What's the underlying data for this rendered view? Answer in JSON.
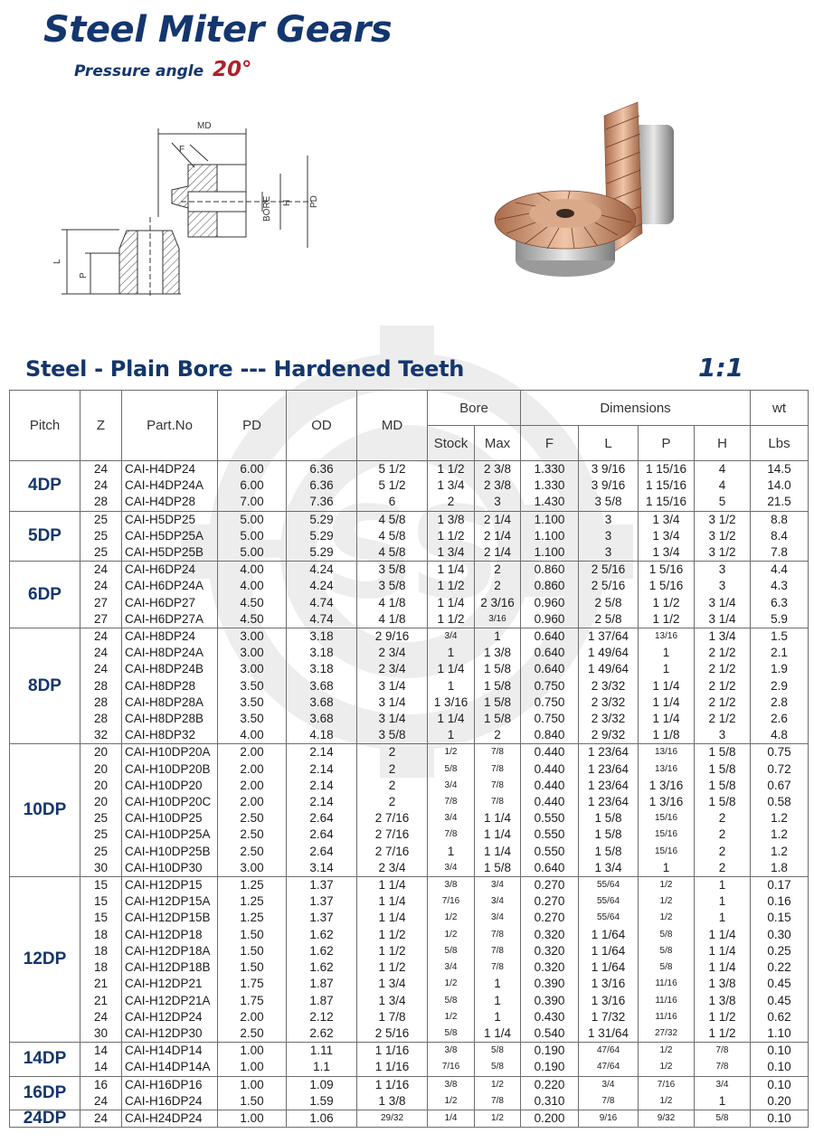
{
  "title": "Steel Miter Gears",
  "subtitle": {
    "label": "Pressure angle",
    "value": "20°"
  },
  "drawing": {
    "labels": {
      "md": "MD",
      "f": "F",
      "bore": "BORE",
      "h": "H",
      "pd": "PD",
      "l": "L",
      "p": "P"
    }
  },
  "section_title": "Steel - Plain Bore --- Hardened Teeth",
  "ratio": "1:1",
  "watermark": "HSSB",
  "table": {
    "headers": {
      "pitch": "Pitch",
      "z": "Z",
      "part": "Part.No",
      "pd": "PD",
      "od": "OD",
      "md": "MD",
      "bore": "Bore",
      "stock": "Stock",
      "max": "Max",
      "dimensions": "Dimensions",
      "f": "F",
      "l": "L",
      "p": "P",
      "h": "H",
      "wt": "wt",
      "lbs": "Lbs"
    },
    "groups": [
      {
        "pitch": "4DP",
        "rows": [
          [
            "24",
            "CAI-H4DP24",
            "6.00",
            "6.36",
            "5 1/2",
            "1 1/2",
            "2 3/8",
            "1.330",
            "3 9/16",
            "1 15/16",
            "4",
            "14.5"
          ],
          [
            "24",
            "CAI-H4DP24A",
            "6.00",
            "6.36",
            "5 1/2",
            "1 3/4",
            "2 3/8",
            "1.330",
            "3 9/16",
            "1 15/16",
            "4",
            "14.0"
          ],
          [
            "28",
            "CAI-H4DP28",
            "7.00",
            "7.36",
            "6",
            "2",
            "3",
            "1.430",
            "3 5/8",
            "1 15/16",
            "5",
            "21.5"
          ]
        ]
      },
      {
        "pitch": "5DP",
        "rows": [
          [
            "25",
            "CAI-H5DP25",
            "5.00",
            "5.29",
            "4 5/8",
            "1 3/8",
            "2 1/4",
            "1.100",
            "3",
            "1 3/4",
            "3 1/2",
            "8.8"
          ],
          [
            "25",
            "CAI-H5DP25A",
            "5.00",
            "5.29",
            "4 5/8",
            "1 1/2",
            "2 1/4",
            "1.100",
            "3",
            "1 3/4",
            "3 1/2",
            "8.4"
          ],
          [
            "25",
            "CAI-H5DP25B",
            "5.00",
            "5.29",
            "4 5/8",
            "1 3/4",
            "2 1/4",
            "1.100",
            "3",
            "1 3/4",
            "3 1/2",
            "7.8"
          ]
        ]
      },
      {
        "pitch": "6DP",
        "rows": [
          [
            "24",
            "CAI-H6DP24",
            "4.00",
            "4.24",
            "3 5/8",
            "1 1/4",
            "2",
            "0.860",
            "2 5/16",
            "1 5/16",
            "3",
            "4.4"
          ],
          [
            "24",
            "CAI-H6DP24A",
            "4.00",
            "4.24",
            "3 5/8",
            "1 1/2",
            "2",
            "0.860",
            "2 5/16",
            "1 5/16",
            "3",
            "4.3"
          ],
          [
            "27",
            "CAI-H6DP27",
            "4.50",
            "4.74",
            "4 1/8",
            "1 1/4",
            "2 3/16",
            "0.960",
            "2 5/8",
            "1 1/2",
            "3 1/4",
            "6.3"
          ],
          [
            "27",
            "CAI-H6DP27A",
            "4.50",
            "4.74",
            "4 1/8",
            "1 1/2",
            "3/16",
            "0.960",
            "2 5/8",
            "1 1/2",
            "3 1/4",
            "5.9"
          ]
        ]
      },
      {
        "pitch": "8DP",
        "rows": [
          [
            "24",
            "CAI-H8DP24",
            "3.00",
            "3.18",
            "2 9/16",
            "3/4",
            "1",
            "0.640",
            "1 37/64",
            "13/16",
            "1 3/4",
            "1.5"
          ],
          [
            "24",
            "CAI-H8DP24A",
            "3.00",
            "3.18",
            "2 3/4",
            "1",
            "1 3/8",
            "0.640",
            "1 49/64",
            "1",
            "2 1/2",
            "2.1"
          ],
          [
            "24",
            "CAI-H8DP24B",
            "3.00",
            "3.18",
            "2 3/4",
            "1 1/4",
            "1 5/8",
            "0.640",
            "1 49/64",
            "1",
            "2 1/2",
            "1.9"
          ],
          [
            "28",
            "CAI-H8DP28",
            "3.50",
            "3.68",
            "3 1/4",
            "1",
            "1 5/8",
            "0.750",
            "2 3/32",
            "1 1/4",
            "2 1/2",
            "2.9"
          ],
          [
            "28",
            "CAI-H8DP28A",
            "3.50",
            "3.68",
            "3 1/4",
            "1 3/16",
            "1 5/8",
            "0.750",
            "2 3/32",
            "1 1/4",
            "2 1/2",
            "2.8"
          ],
          [
            "28",
            "CAI-H8DP28B",
            "3.50",
            "3.68",
            "3 1/4",
            "1 1/4",
            "1 5/8",
            "0.750",
            "2 3/32",
            "1 1/4",
            "2 1/2",
            "2.6"
          ],
          [
            "32",
            "CAI-H8DP32",
            "4.00",
            "4.18",
            "3 5/8",
            "1",
            "2",
            "0.840",
            "2 9/32",
            "1 1/8",
            "3",
            "4.8"
          ]
        ]
      },
      {
        "pitch": "10DP",
        "rows": [
          [
            "20",
            "CAI-H10DP20A",
            "2.00",
            "2.14",
            "2",
            "1/2",
            "7/8",
            "0.440",
            "1 23/64",
            "13/16",
            "1 5/8",
            "0.75"
          ],
          [
            "20",
            "CAI-H10DP20B",
            "2.00",
            "2.14",
            "2",
            "5/8",
            "7/8",
            "0.440",
            "1 23/64",
            "13/16",
            "1 5/8",
            "0.72"
          ],
          [
            "20",
            "CAI-H10DP20",
            "2.00",
            "2.14",
            "2",
            "3/4",
            "7/8",
            "0.440",
            "1 23/64",
            "1 3/16",
            "1 5/8",
            "0.67"
          ],
          [
            "20",
            "CAI-H10DP20C",
            "2.00",
            "2.14",
            "2",
            "7/8",
            "7/8",
            "0.440",
            "1 23/64",
            "1 3/16",
            "1 5/8",
            "0.58"
          ],
          [
            "25",
            "CAI-H10DP25",
            "2.50",
            "2.64",
            "2 7/16",
            "3/4",
            "1 1/4",
            "0.550",
            "1 5/8",
            "15/16",
            "2",
            "1.2"
          ],
          [
            "25",
            "CAI-H10DP25A",
            "2.50",
            "2.64",
            "2 7/16",
            "7/8",
            "1 1/4",
            "0.550",
            "1 5/8",
            "15/16",
            "2",
            "1.2"
          ],
          [
            "25",
            "CAI-H10DP25B",
            "2.50",
            "2.64",
            "2 7/16",
            "1",
            "1 1/4",
            "0.550",
            "1 5/8",
            "15/16",
            "2",
            "1.2"
          ],
          [
            "30",
            "CAI-H10DP30",
            "3.00",
            "3.14",
            "2 3/4",
            "3/4",
            "1 5/8",
            "0.640",
            "1 3/4",
            "1",
            "2",
            "1.8"
          ]
        ]
      },
      {
        "pitch": "12DP",
        "rows": [
          [
            "15",
            "CAI-H12DP15",
            "1.25",
            "1.37",
            "1 1/4",
            "3/8",
            "3/4",
            "0.270",
            "55/64",
            "1/2",
            "1",
            "0.17"
          ],
          [
            "15",
            "CAI-H12DP15A",
            "1.25",
            "1.37",
            "1 1/4",
            "7/16",
            "3/4",
            "0.270",
            "55/64",
            "1/2",
            "1",
            "0.16"
          ],
          [
            "15",
            "CAI-H12DP15B",
            "1.25",
            "1.37",
            "1 1/4",
            "1/2",
            "3/4",
            "0.270",
            "55/64",
            "1/2",
            "1",
            "0.15"
          ],
          [
            "18",
            "CAI-H12DP18",
            "1.50",
            "1.62",
            "1 1/2",
            "1/2",
            "7/8",
            "0.320",
            "1 1/64",
            "5/8",
            "1 1/4",
            "0.30"
          ],
          [
            "18",
            "CAI-H12DP18A",
            "1.50",
            "1.62",
            "1 1/2",
            "5/8",
            "7/8",
            "0.320",
            "1 1/64",
            "5/8",
            "1 1/4",
            "0.25"
          ],
          [
            "18",
            "CAI-H12DP18B",
            "1.50",
            "1.62",
            "1 1/2",
            "3/4",
            "7/8",
            "0.320",
            "1 1/64",
            "5/8",
            "1 1/4",
            "0.22"
          ],
          [
            "21",
            "CAI-H12DP21",
            "1.75",
            "1.87",
            "1 3/4",
            "1/2",
            "1",
            "0.390",
            "1 3/16",
            "11/16",
            "1 3/8",
            "0.45"
          ],
          [
            "21",
            "CAI-H12DP21A",
            "1.75",
            "1.87",
            "1 3/4",
            "5/8",
            "1",
            "0.390",
            "1 3/16",
            "11/16",
            "1 3/8",
            "0.45"
          ],
          [
            "24",
            "CAI-H12DP24",
            "2.00",
            "2.12",
            "1 7/8",
            "1/2",
            "1",
            "0.430",
            "1 7/32",
            "11/16",
            "1 1/2",
            "0.62"
          ],
          [
            "30",
            "CAI-H12DP30",
            "2.50",
            "2.62",
            "2 5/16",
            "5/8",
            "1 1/4",
            "0.540",
            "1 31/64",
            "27/32",
            "1 1/2",
            "1.10"
          ]
        ]
      },
      {
        "pitch": "14DP",
        "rows": [
          [
            "14",
            "CAI-H14DP14",
            "1.00",
            "1.11",
            "1 1/16",
            "3/8",
            "5/8",
            "0.190",
            "47/64",
            "1/2",
            "7/8",
            "0.10"
          ],
          [
            "14",
            "CAI-H14DP14A",
            "1.00",
            "1.1",
            "1 1/16",
            "7/16",
            "5/8",
            "0.190",
            "47/64",
            "1/2",
            "7/8",
            "0.10"
          ]
        ]
      },
      {
        "pitch": "16DP",
        "rows": [
          [
            "16",
            "CAI-H16DP16",
            "1.00",
            "1.09",
            "1 1/16",
            "3/8",
            "1/2",
            "0.220",
            "3/4",
            "7/16",
            "3/4",
            "0.10"
          ],
          [
            "24",
            "CAI-H16DP24",
            "1.50",
            "1.59",
            "1 3/8",
            "1/2",
            "7/8",
            "0.310",
            "7/8",
            "1/2",
            "1",
            "0.20"
          ]
        ]
      },
      {
        "pitch": "24DP",
        "rows": [
          [
            "24",
            "CAI-H24DP24",
            "1.00",
            "1.06",
            "29/32",
            "1/4",
            "1/2",
            "0.200",
            "9/16",
            "9/32",
            "5/8",
            "0.10"
          ]
        ]
      }
    ]
  },
  "colors": {
    "title": "#14366e",
    "accent": "#b0202a",
    "grid": "#6d6d6d"
  }
}
